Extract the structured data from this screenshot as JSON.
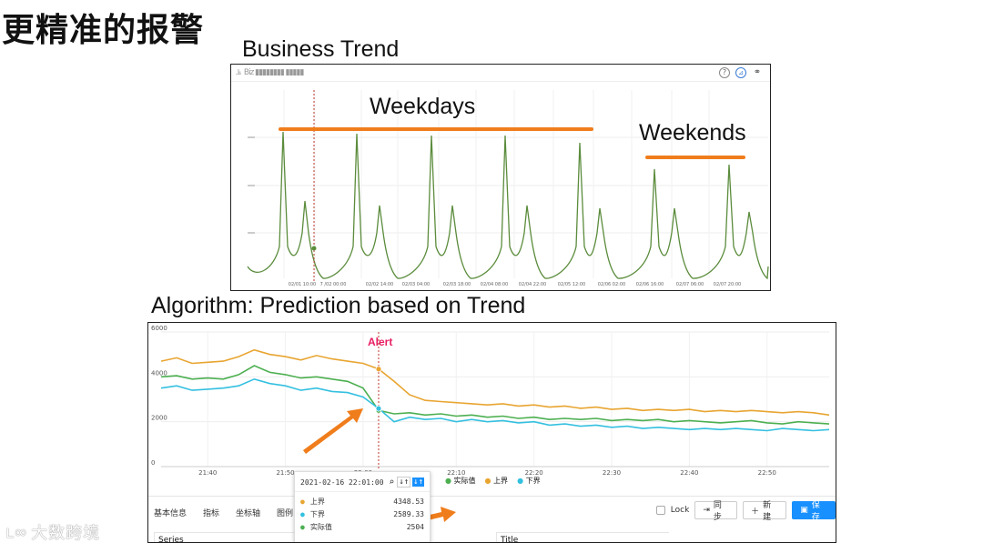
{
  "slide": {
    "title": "更精准的报警",
    "section1_label": "Business Trend",
    "section2_label": "Algorithm: Prediction based on Trend",
    "watermark": "大数跨境"
  },
  "trend_panel": {
    "header_text": "Biz ▮▮▮▮▮▮▮▮ ▮▮▮▮▮",
    "icons": [
      "question-icon",
      "chart-icon",
      "link-icon"
    ],
    "annotations": {
      "weekdays": "Weekdays",
      "weekends": "Weekends"
    },
    "x_ticks": [
      "02/01 10:00",
      "7 /02 00:00",
      "02/02 14:00",
      "02/03 04:00",
      "02/03 18:00",
      "02/04 08:00",
      "02/04 22:00",
      "02/05 12:00",
      "02/06 02:00",
      "02/06 16:00",
      "02/07 06:00",
      "02/07 20:00"
    ],
    "colors": {
      "line": "#5b8c3c",
      "annotation_bar": "#f07d1b",
      "marker": "#c0392b"
    }
  },
  "algo_panel": {
    "alert_label": "Alert",
    "legend": [
      {
        "name": "实际值",
        "color": "#4caf50"
      },
      {
        "name": "上界",
        "color": "#e8a531"
      },
      {
        "name": "下界",
        "color": "#34c0e0"
      }
    ],
    "tooltip": {
      "time": "2021-02-16 22:01:00",
      "rows": [
        {
          "label": "上界",
          "value": "4348.53",
          "color": "#e8a531"
        },
        {
          "label": "下界",
          "value": "2589.33",
          "color": "#34c0e0"
        },
        {
          "label": "实际值",
          "value": "2504",
          "color": "#4caf50"
        }
      ]
    },
    "tabs": [
      "基本信息",
      "指标",
      "坐标轴",
      "图例"
    ],
    "buttons": {
      "lock": "Lock",
      "sync": "同步",
      "new": "新建",
      "save": "保存"
    },
    "bottom_labels": {
      "series": "Series",
      "title": "Title"
    }
  },
  "chart_data": {
    "type": "line",
    "x": [
      "21:34",
      "21:36",
      "21:38",
      "21:40",
      "21:42",
      "21:44",
      "21:46",
      "21:48",
      "21:50",
      "21:52",
      "21:54",
      "21:56",
      "21:58",
      "22:00",
      "22:01",
      "22:02",
      "22:04",
      "22:06",
      "22:08",
      "22:10",
      "22:12",
      "22:14",
      "22:16",
      "22:18",
      "22:20",
      "22:22",
      "22:24",
      "22:26",
      "22:28",
      "22:30",
      "22:32",
      "22:34",
      "22:36",
      "22:38",
      "22:40",
      "22:42",
      "22:44",
      "22:46",
      "22:48",
      "22:50",
      "22:52",
      "22:54",
      "22:56",
      "22:58"
    ],
    "x_ticks": [
      "21:40",
      "21:50",
      "22:00",
      "22:10",
      "22:20",
      "22:30",
      "22:40",
      "22:50"
    ],
    "ylim": [
      0,
      6000
    ],
    "y_ticks": [
      0,
      2000,
      4000,
      6000
    ],
    "series": [
      {
        "name": "上界",
        "color": "#e8a531",
        "values": [
          4700,
          4850,
          4600,
          4650,
          4700,
          4900,
          5200,
          5000,
          4900,
          4750,
          4950,
          4800,
          4700,
          4600,
          4348,
          3800,
          3200,
          2950,
          2900,
          2850,
          2800,
          2750,
          2800,
          2700,
          2750,
          2650,
          2700,
          2600,
          2650,
          2550,
          2600,
          2500,
          2550,
          2500,
          2550,
          2450,
          2500,
          2450,
          2500,
          2450,
          2400,
          2450,
          2400,
          2300
        ]
      },
      {
        "name": "实际值",
        "color": "#4caf50",
        "values": [
          4000,
          4050,
          3900,
          3950,
          3900,
          4100,
          4500,
          4200,
          4100,
          3950,
          4000,
          3900,
          3800,
          3500,
          2504,
          2350,
          2400,
          2300,
          2350,
          2250,
          2300,
          2200,
          2250,
          2150,
          2200,
          2100,
          2150,
          2100,
          2150,
          2050,
          2100,
          2050,
          2100,
          2000,
          2050,
          2000,
          1950,
          2000,
          2050,
          1950,
          1900,
          2000,
          1950,
          1900
        ]
      },
      {
        "name": "下界",
        "color": "#34c0e0",
        "values": [
          3500,
          3600,
          3400,
          3450,
          3500,
          3600,
          3900,
          3700,
          3600,
          3400,
          3500,
          3350,
          3300,
          3100,
          2589,
          2000,
          2200,
          2100,
          2150,
          2000,
          2100,
          2000,
          2050,
          1950,
          2000,
          1850,
          1900,
          1800,
          1850,
          1750,
          1800,
          1700,
          1750,
          1700,
          1650,
          1700,
          1650,
          1700,
          1650,
          1600,
          1700,
          1650,
          1600,
          1650
        ]
      }
    ],
    "alert_x": "22:01"
  }
}
